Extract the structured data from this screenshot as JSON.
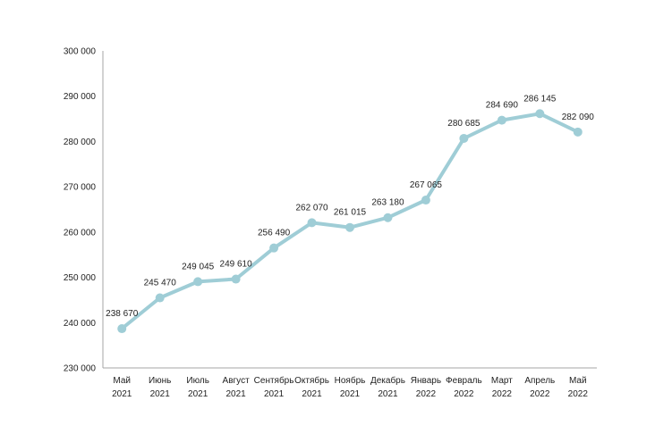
{
  "chart_data": {
    "type": "line",
    "categories": [
      [
        "Май",
        "2021"
      ],
      [
        "Июнь",
        "2021"
      ],
      [
        "Июль",
        "2021"
      ],
      [
        "Август",
        "2021"
      ],
      [
        "Сентябрь",
        "2021"
      ],
      [
        "Октябрь",
        "2021"
      ],
      [
        "Ноябрь",
        "2021"
      ],
      [
        "Декабрь",
        "2021"
      ],
      [
        "Январь",
        "2022"
      ],
      [
        "Февраль",
        "2022"
      ],
      [
        "Март",
        "2022"
      ],
      [
        "Апрель",
        "2022"
      ],
      [
        "Май",
        "2022"
      ]
    ],
    "values": [
      238670,
      245470,
      249045,
      249610,
      256490,
      262070,
      261015,
      263180,
      267065,
      280685,
      284690,
      286145,
      282090
    ],
    "data_labels": [
      "238 670",
      "245 470",
      "249 045",
      "249 610",
      "256 490",
      "262 070",
      "261 015",
      "263 180",
      "267 065",
      "280 685",
      "284 690",
      "286 145",
      "282 090"
    ],
    "y_ticks": [
      230000,
      240000,
      250000,
      260000,
      270000,
      280000,
      290000,
      300000
    ],
    "y_tick_labels": [
      "230 000",
      "240 000",
      "250 000",
      "260 000",
      "270 000",
      "280 000",
      "290 000",
      "300 000"
    ],
    "ylim": [
      230000,
      300000
    ],
    "title": "",
    "xlabel": "",
    "ylabel": "",
    "grid": false,
    "legend": "none",
    "line_color": "#9FCDD6",
    "axis_color": "#A6A6A6"
  }
}
